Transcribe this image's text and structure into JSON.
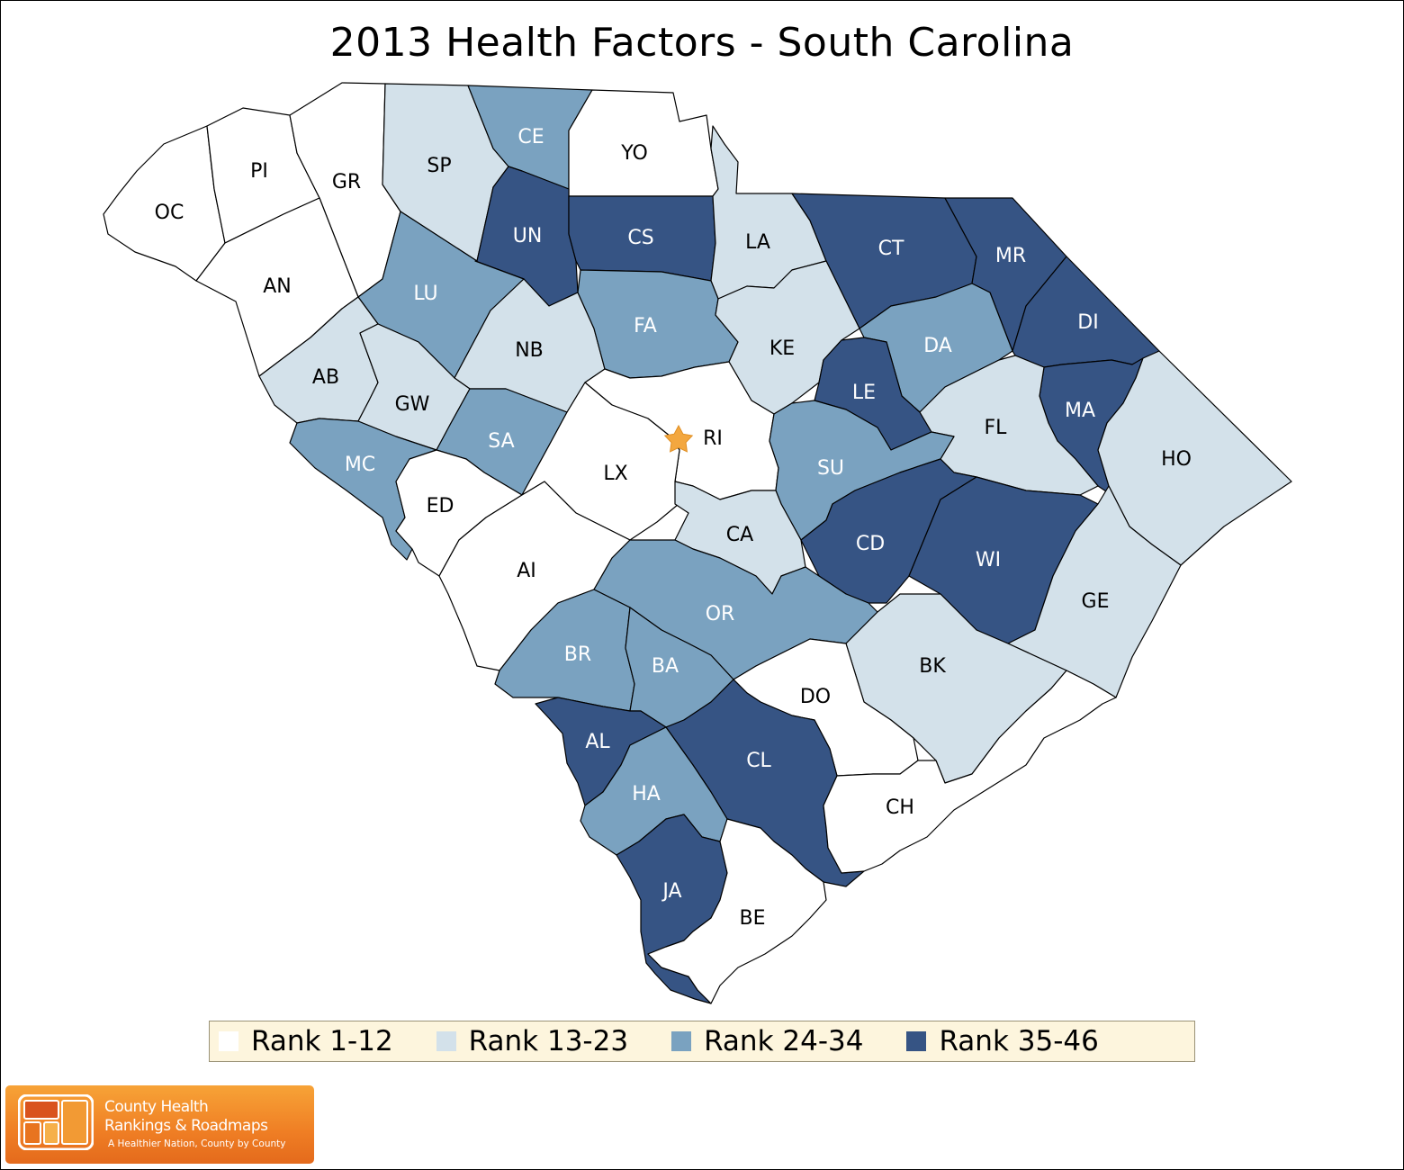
{
  "title": "2013 Health Factors - South Carolina",
  "colors": {
    "rank_1_12": "#ffffff",
    "rank_13_23": "#d3e1ea",
    "rank_24_34": "#7aa2c0",
    "rank_35_46": "#365484",
    "capital_star": "#f3a73f",
    "legend_bg": "#fdf5dd"
  },
  "legend": [
    {
      "label": "Rank 1-12",
      "color": "#ffffff"
    },
    {
      "label": "Rank 13-23",
      "color": "#d3e1ea"
    },
    {
      "label": "Rank 24-34",
      "color": "#7aa2c0"
    },
    {
      "label": "Rank 35-46",
      "color": "#365484"
    }
  ],
  "counties": [
    {
      "abbr": "OC",
      "rank_group": "Rank 1-12"
    },
    {
      "abbr": "PI",
      "rank_group": "Rank 1-12"
    },
    {
      "abbr": "GR",
      "rank_group": "Rank 1-12"
    },
    {
      "abbr": "AN",
      "rank_group": "Rank 1-12"
    },
    {
      "abbr": "SP",
      "rank_group": "Rank 13-23"
    },
    {
      "abbr": "CE",
      "rank_group": "Rank 24-34"
    },
    {
      "abbr": "YO",
      "rank_group": "Rank 1-12"
    },
    {
      "abbr": "UN",
      "rank_group": "Rank 35-46"
    },
    {
      "abbr": "CS",
      "rank_group": "Rank 35-46"
    },
    {
      "abbr": "LA",
      "rank_group": "Rank 13-23"
    },
    {
      "abbr": "CT",
      "rank_group": "Rank 35-46"
    },
    {
      "abbr": "MR",
      "rank_group": "Rank 35-46"
    },
    {
      "abbr": "LU",
      "rank_group": "Rank 24-34"
    },
    {
      "abbr": "NB",
      "rank_group": "Rank 13-23"
    },
    {
      "abbr": "FA",
      "rank_group": "Rank 24-34"
    },
    {
      "abbr": "KE",
      "rank_group": "Rank 13-23"
    },
    {
      "abbr": "DA",
      "rank_group": "Rank 24-34"
    },
    {
      "abbr": "DI",
      "rank_group": "Rank 35-46"
    },
    {
      "abbr": "AB",
      "rank_group": "Rank 13-23"
    },
    {
      "abbr": "GW",
      "rank_group": "Rank 13-23"
    },
    {
      "abbr": "SA",
      "rank_group": "Rank 24-34"
    },
    {
      "abbr": "RI",
      "rank_group": "Rank 1-12"
    },
    {
      "abbr": "LE",
      "rank_group": "Rank 35-46"
    },
    {
      "abbr": "MA",
      "rank_group": "Rank 35-46"
    },
    {
      "abbr": "FL",
      "rank_group": "Rank 13-23"
    },
    {
      "abbr": "HO",
      "rank_group": "Rank 13-23"
    },
    {
      "abbr": "MC",
      "rank_group": "Rank 24-34"
    },
    {
      "abbr": "ED",
      "rank_group": "Rank 1-12"
    },
    {
      "abbr": "LX",
      "rank_group": "Rank 1-12"
    },
    {
      "abbr": "SU",
      "rank_group": "Rank 24-34"
    },
    {
      "abbr": "CD",
      "rank_group": "Rank 35-46"
    },
    {
      "abbr": "WI",
      "rank_group": "Rank 35-46"
    },
    {
      "abbr": "CA",
      "rank_group": "Rank 13-23"
    },
    {
      "abbr": "AI",
      "rank_group": "Rank 1-12"
    },
    {
      "abbr": "GE",
      "rank_group": "Rank 13-23"
    },
    {
      "abbr": "OR",
      "rank_group": "Rank 24-34"
    },
    {
      "abbr": "BR",
      "rank_group": "Rank 24-34"
    },
    {
      "abbr": "BA",
      "rank_group": "Rank 24-34"
    },
    {
      "abbr": "BK",
      "rank_group": "Rank 13-23"
    },
    {
      "abbr": "DO",
      "rank_group": "Rank 1-12"
    },
    {
      "abbr": "AL",
      "rank_group": "Rank 35-46"
    },
    {
      "abbr": "CL",
      "rank_group": "Rank 35-46"
    },
    {
      "abbr": "HA",
      "rank_group": "Rank 24-34"
    },
    {
      "abbr": "CH",
      "rank_group": "Rank 1-12"
    },
    {
      "abbr": "JA",
      "rank_group": "Rank 35-46"
    },
    {
      "abbr": "BE",
      "rank_group": "Rank 1-12"
    }
  ],
  "logo": {
    "line1": "County Health",
    "line2": "Rankings & Roadmaps",
    "tagline": "A Healthier Nation, County by County"
  }
}
